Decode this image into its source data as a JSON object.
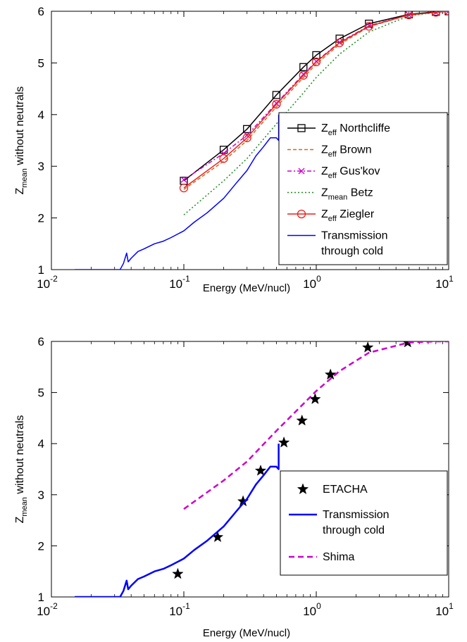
{
  "chart_data": [
    {
      "type": "line",
      "xscale": "log",
      "xlim": [
        0.01,
        10
      ],
      "ylim": [
        1,
        6
      ],
      "xlabel": "Energy (MeV/nucl)",
      "ylabel": {
        "main": "Z",
        "sub": "mean",
        "rest": " without neutrals"
      },
      "xticks": [
        {
          "base": "10",
          "exp": "-2"
        },
        {
          "base": "10",
          "exp": "-1"
        },
        {
          "base": "10",
          "exp": "0"
        },
        {
          "base": "10",
          "exp": "1"
        }
      ],
      "yticks": [
        "1",
        "2",
        "3",
        "4",
        "5",
        "6"
      ],
      "legend": {
        "position": "lower-right"
      },
      "series": [
        {
          "name": {
            "main": "Z",
            "sub": "eff",
            "rest": " Northcliffe"
          },
          "color": "#000000",
          "dash": "",
          "marker": "square",
          "x": [
            0.1,
            0.2,
            0.3,
            0.5,
            0.8,
            1.0,
            1.5,
            2.5,
            5,
            8,
            10
          ],
          "y": [
            2.72,
            3.32,
            3.72,
            4.38,
            4.92,
            5.15,
            5.47,
            5.76,
            5.94,
            5.99,
            6.0
          ]
        },
        {
          "name": {
            "main": "Z",
            "sub": "eff",
            "rest": " Brown"
          },
          "color": "#d2691e",
          "dash": "5,3",
          "marker": "",
          "x": [
            0.1,
            0.2,
            0.3,
            0.5,
            0.8,
            1.0,
            1.5,
            2.5,
            5,
            8,
            10
          ],
          "y": [
            2.55,
            3.1,
            3.5,
            4.15,
            4.72,
            4.98,
            5.36,
            5.7,
            5.93,
            5.98,
            6.0
          ]
        },
        {
          "name": {
            "main": "Z",
            "sub": "eff",
            "rest": " Gus'kov"
          },
          "color": "#cc00cc",
          "dash": "6,3,2,3",
          "marker": "x",
          "x": [
            0.1,
            0.2,
            0.3,
            0.5,
            0.8,
            1.0,
            1.5,
            2.5,
            5,
            8,
            10
          ],
          "y": [
            2.74,
            3.25,
            3.6,
            4.22,
            4.78,
            5.03,
            5.4,
            5.72,
            5.93,
            5.98,
            6.0
          ]
        },
        {
          "name": {
            "main": "Z",
            "sub": "mean",
            "rest": " Betz"
          },
          "color": "#1a8a1a",
          "dash": "2,3",
          "marker": "",
          "x": [
            0.1,
            0.2,
            0.3,
            0.5,
            0.8,
            1.0,
            1.5,
            2.5,
            5,
            8,
            10
          ],
          "y": [
            2.06,
            2.72,
            3.15,
            3.82,
            4.42,
            4.72,
            5.17,
            5.6,
            5.91,
            5.98,
            6.0
          ]
        },
        {
          "name": {
            "main": "Z",
            "sub": "eff",
            "rest": " Ziegler"
          },
          "color": "#e8211e",
          "dash": "",
          "marker": "circle",
          "x": [
            0.1,
            0.2,
            0.3,
            0.5,
            0.8,
            1.0,
            1.5,
            2.5,
            5,
            8,
            10
          ],
          "y": [
            2.58,
            3.15,
            3.55,
            4.2,
            4.76,
            5.02,
            5.39,
            5.71,
            5.93,
            5.98,
            6.0
          ]
        },
        {
          "name": {
            "main": "Transmission",
            "sub": "",
            "rest": "",
            "line2": "through cold"
          },
          "color": "#0000ff",
          "dash": "",
          "marker": "",
          "x": [
            0.015,
            0.033,
            0.035,
            0.037,
            0.038,
            0.04,
            0.045,
            0.05,
            0.06,
            0.07,
            0.08,
            0.1,
            0.12,
            0.15,
            0.2,
            0.25,
            0.3,
            0.35,
            0.4,
            0.45,
            0.5,
            0.52,
            0.52
          ],
          "y": [
            1.0,
            1.0,
            1.12,
            1.32,
            1.15,
            1.22,
            1.35,
            1.4,
            1.5,
            1.55,
            1.62,
            1.75,
            1.92,
            2.1,
            2.38,
            2.68,
            2.92,
            3.2,
            3.38,
            3.55,
            3.55,
            3.5,
            4.0
          ]
        }
      ]
    },
    {
      "type": "line",
      "xscale": "log",
      "xlim": [
        0.01,
        10
      ],
      "ylim": [
        1,
        6
      ],
      "xlabel": "Energy (MeV/nucl)",
      "ylabel": {
        "main": "Z",
        "sub": "mean",
        "rest": " without neutrals"
      },
      "xticks": [
        {
          "base": "10",
          "exp": "-2"
        },
        {
          "base": "10",
          "exp": "-1"
        },
        {
          "base": "10",
          "exp": "0"
        },
        {
          "base": "10",
          "exp": "1"
        }
      ],
      "yticks": [
        "1",
        "2",
        "3",
        "4",
        "5",
        "6"
      ],
      "legend": {
        "position": "lower-right"
      },
      "series": [
        {
          "name": {
            "main": "ETACHA",
            "sub": "",
            "rest": ""
          },
          "color": "#000000",
          "dash": "",
          "marker": "star",
          "line": false,
          "x": [
            0.09,
            0.18,
            0.28,
            0.38,
            0.57,
            0.78,
            0.98,
            1.28,
            2.45,
            4.9
          ],
          "y": [
            1.45,
            2.17,
            2.87,
            3.47,
            4.02,
            4.45,
            4.87,
            5.35,
            5.88,
            5.98
          ]
        },
        {
          "name": {
            "main": "Transmission",
            "sub": "",
            "rest": "",
            "line2": "through cold"
          },
          "color": "#0000ff",
          "dash": "",
          "marker": "",
          "width": 2.5,
          "x": [
            0.015,
            0.033,
            0.035,
            0.037,
            0.038,
            0.04,
            0.045,
            0.05,
            0.06,
            0.07,
            0.08,
            0.1,
            0.12,
            0.15,
            0.2,
            0.25,
            0.3,
            0.35,
            0.4,
            0.45,
            0.5,
            0.52,
            0.52
          ],
          "y": [
            1.0,
            1.0,
            1.12,
            1.32,
            1.15,
            1.22,
            1.35,
            1.4,
            1.5,
            1.55,
            1.62,
            1.75,
            1.92,
            2.1,
            2.38,
            2.68,
            2.92,
            3.2,
            3.38,
            3.55,
            3.55,
            3.5,
            4.0
          ]
        },
        {
          "name": {
            "main": "Shima",
            "sub": "",
            "rest": ""
          },
          "color": "#cc00cc",
          "dash": "8,5",
          "marker": "",
          "width": 2.5,
          "x": [
            0.1,
            0.2,
            0.3,
            0.5,
            0.8,
            1.0,
            1.5,
            2.5,
            5,
            8,
            10
          ],
          "y": [
            2.72,
            3.28,
            3.65,
            4.25,
            4.78,
            5.03,
            5.42,
            5.78,
            5.98,
            6.0,
            6.0
          ]
        }
      ]
    }
  ]
}
